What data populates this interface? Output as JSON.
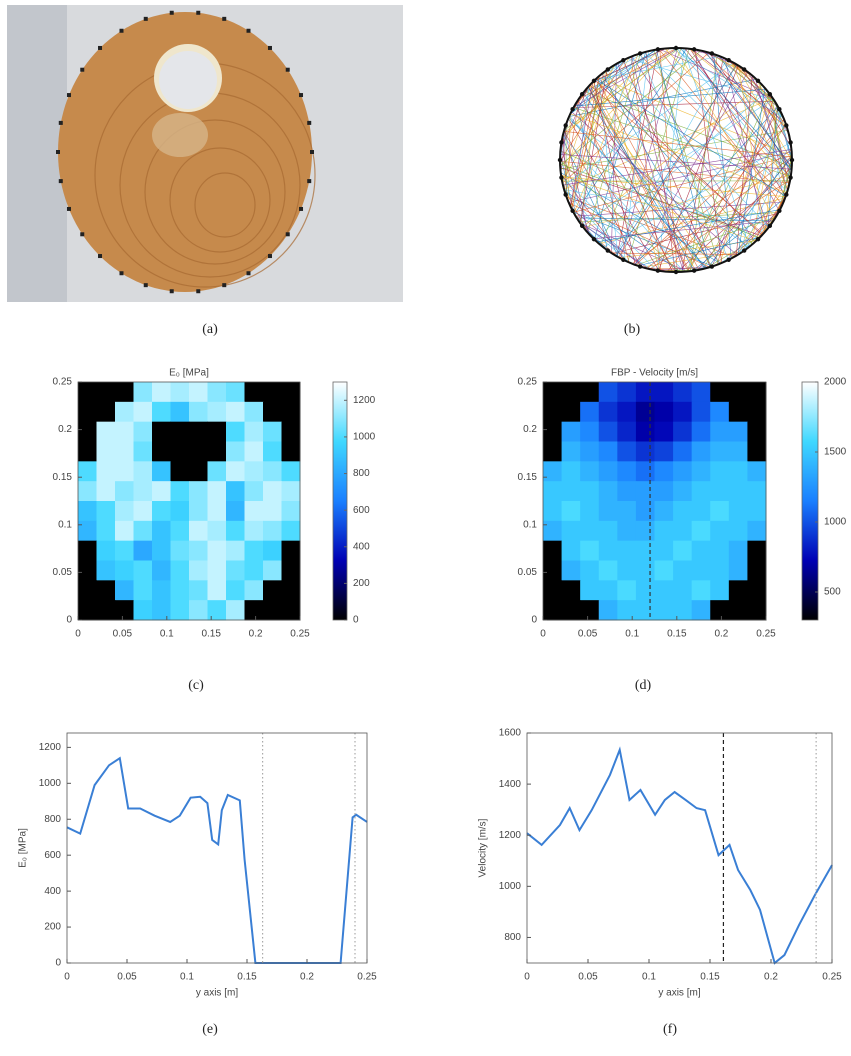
{
  "figure": {
    "labels": [
      "(a)",
      "(b)"
    ]
  },
  "chart_data": [
    {
      "type": "heatmap",
      "label": "(c)",
      "title": "E₀ [MPa]",
      "xlim": [
        0,
        0.25
      ],
      "ylim": [
        0,
        0.25
      ],
      "xticks": [
        0,
        0.05,
        0.1,
        0.15,
        0.2,
        0.25
      ],
      "yticks": [
        0,
        0.05,
        0.1,
        0.15,
        0.2,
        0.25
      ],
      "clim": [
        0,
        1300
      ],
      "cticks": [
        0,
        200,
        400,
        600,
        800,
        1000,
        1200
      ],
      "colormap": [
        "#000000",
        "#0000b4",
        "#1a7fff",
        "#3fd8ff",
        "#ffffff"
      ],
      "z": [
        [
          0,
          0,
          0,
          1100,
          1200,
          1150,
          1200,
          1100,
          1050,
          0,
          0,
          0
        ],
        [
          0,
          0,
          1150,
          1200,
          1000,
          900,
          1100,
          1150,
          1200,
          1100,
          0,
          0
        ],
        [
          0,
          1200,
          1200,
          1100,
          0,
          0,
          0,
          0,
          1000,
          1150,
          1050,
          0
        ],
        [
          0,
          1200,
          1200,
          1050,
          0,
          0,
          0,
          0,
          1100,
          1200,
          1000,
          0
        ],
        [
          1000,
          1200,
          1200,
          1150,
          900,
          0,
          0,
          1050,
          1200,
          1150,
          1100,
          1000
        ],
        [
          1100,
          1200,
          1100,
          1150,
          1200,
          1000,
          1100,
          1200,
          900,
          1100,
          1200,
          1150
        ],
        [
          900,
          1000,
          1150,
          1200,
          1000,
          950,
          1100,
          1200,
          850,
          1200,
          1200,
          1100
        ],
        [
          850,
          1000,
          1200,
          1050,
          900,
          1000,
          1200,
          1150,
          1000,
          1150,
          1100,
          1000
        ],
        [
          0,
          950,
          1000,
          800,
          900,
          1050,
          1100,
          1200,
          1150,
          1000,
          950,
          0
        ],
        [
          0,
          900,
          950,
          1000,
          850,
          1000,
          1150,
          1200,
          1050,
          1000,
          1100,
          0
        ],
        [
          0,
          0,
          850,
          1000,
          900,
          1000,
          1050,
          1200,
          1000,
          1100,
          0,
          0
        ],
        [
          0,
          0,
          0,
          950,
          900,
          1000,
          1100,
          1000,
          1150,
          0,
          0,
          0
        ]
      ]
    },
    {
      "type": "heatmap",
      "label": "(d)",
      "title": "FBP - Velocity [m/s]",
      "xlim": [
        0,
        0.25
      ],
      "ylim": [
        0,
        0.25
      ],
      "xticks": [
        0,
        0.05,
        0.1,
        0.15,
        0.2,
        0.25
      ],
      "yticks": [
        0,
        0.05,
        0.1,
        0.15,
        0.2,
        0.25
      ],
      "clim": [
        300,
        2000
      ],
      "cticks": [
        500,
        1000,
        1500,
        2000
      ],
      "colormap": [
        "#000000",
        "#0000b4",
        "#1a7fff",
        "#3fd8ff",
        "#ffffff"
      ],
      "reference_lines": [
        {
          "x": 0.12,
          "color": "#333333",
          "style": "dashed"
        }
      ],
      "z": [
        [
          300,
          300,
          300,
          1000,
          900,
          800,
          800,
          900,
          1000,
          300,
          300,
          300
        ],
        [
          300,
          300,
          1100,
          900,
          800,
          650,
          700,
          800,
          1000,
          1200,
          300,
          300
        ],
        [
          300,
          1300,
          1200,
          1000,
          850,
          700,
          750,
          900,
          1100,
          1300,
          1300,
          300
        ],
        [
          300,
          1400,
          1300,
          1200,
          1000,
          900,
          950,
          1100,
          1300,
          1400,
          1400,
          300
        ],
        [
          1400,
          1500,
          1400,
          1300,
          1200,
          1100,
          1200,
          1300,
          1400,
          1500,
          1500,
          1400
        ],
        [
          1500,
          1500,
          1500,
          1400,
          1300,
          1300,
          1300,
          1400,
          1500,
          1500,
          1500,
          1500
        ],
        [
          1500,
          1600,
          1500,
          1400,
          1400,
          1300,
          1400,
          1500,
          1500,
          1600,
          1500,
          1500
        ],
        [
          1400,
          1500,
          1500,
          1500,
          1400,
          1400,
          1500,
          1500,
          1600,
          1500,
          1500,
          1400
        ],
        [
          300,
          1500,
          1600,
          1500,
          1500,
          1500,
          1500,
          1600,
          1500,
          1500,
          1400,
          300
        ],
        [
          300,
          1400,
          1500,
          1600,
          1500,
          1500,
          1600,
          1500,
          1500,
          1500,
          1400,
          300
        ],
        [
          300,
          300,
          1500,
          1500,
          1600,
          1500,
          1500,
          1500,
          1600,
          1500,
          300,
          300
        ],
        [
          300,
          300,
          300,
          1400,
          1500,
          1500,
          1500,
          1500,
          1400,
          300,
          300,
          300
        ]
      ]
    },
    {
      "type": "line",
      "label": "(e)",
      "x_label": "y axis [m]",
      "y_label": "E₀ [MPa]",
      "xlim": [
        0,
        0.25
      ],
      "ylim": [
        0,
        1280
      ],
      "xticks": [
        0,
        0.05,
        0.1,
        0.15,
        0.2,
        0.25
      ],
      "yticks": [
        0,
        200,
        400,
        600,
        800,
        1000,
        1200
      ],
      "color": "#3a7fd5",
      "reference_lines": [
        {
          "x": 0.163,
          "color": "#aaaaaa",
          "style": "dotted"
        },
        {
          "x": 0.24,
          "color": "#aaaaaa",
          "style": "dotted"
        }
      ],
      "x": [
        0,
        0.011,
        0.023,
        0.035,
        0.044,
        0.051,
        0.061,
        0.073,
        0.086,
        0.094,
        0.103,
        0.111,
        0.117,
        0.121,
        0.126,
        0.129,
        0.134,
        0.144,
        0.148,
        0.157,
        0.228,
        0.238,
        0.241,
        0.25
      ],
      "values": [
        755,
        720,
        990,
        1100,
        1140,
        860,
        860,
        820,
        785,
        820,
        920,
        925,
        890,
        685,
        660,
        850,
        935,
        905,
        575,
        0,
        0,
        810,
        825,
        785
      ]
    },
    {
      "type": "line",
      "label": "(f)",
      "x_label": "y axis [m]",
      "y_label": "Velocity [m/s]",
      "xlim": [
        0,
        0.25
      ],
      "ylim": [
        700,
        1600
      ],
      "xticks": [
        0,
        0.05,
        0.1,
        0.15,
        0.2,
        0.25
      ],
      "yticks": [
        800,
        1000,
        1200,
        1400,
        1600
      ],
      "color": "#3a7fd5",
      "reference_lines": [
        {
          "x": 0.161,
          "color": "#222222",
          "style": "dashed"
        },
        {
          "x": 0.237,
          "color": "#aaaaaa",
          "style": "dotted"
        }
      ],
      "x": [
        0,
        0.012,
        0.027,
        0.035,
        0.043,
        0.053,
        0.068,
        0.076,
        0.084,
        0.093,
        0.105,
        0.113,
        0.121,
        0.13,
        0.139,
        0.146,
        0.157,
        0.166,
        0.173,
        0.183,
        0.191,
        0.203,
        0.211,
        0.223,
        0.236,
        0.25
      ],
      "values": [
        1208,
        1162,
        1240,
        1306,
        1220,
        1298,
        1436,
        1534,
        1338,
        1377,
        1280,
        1338,
        1369,
        1338,
        1306,
        1298,
        1122,
        1162,
        1064,
        986,
        908,
        700,
        731,
        849,
        966,
        1083
      ]
    }
  ]
}
